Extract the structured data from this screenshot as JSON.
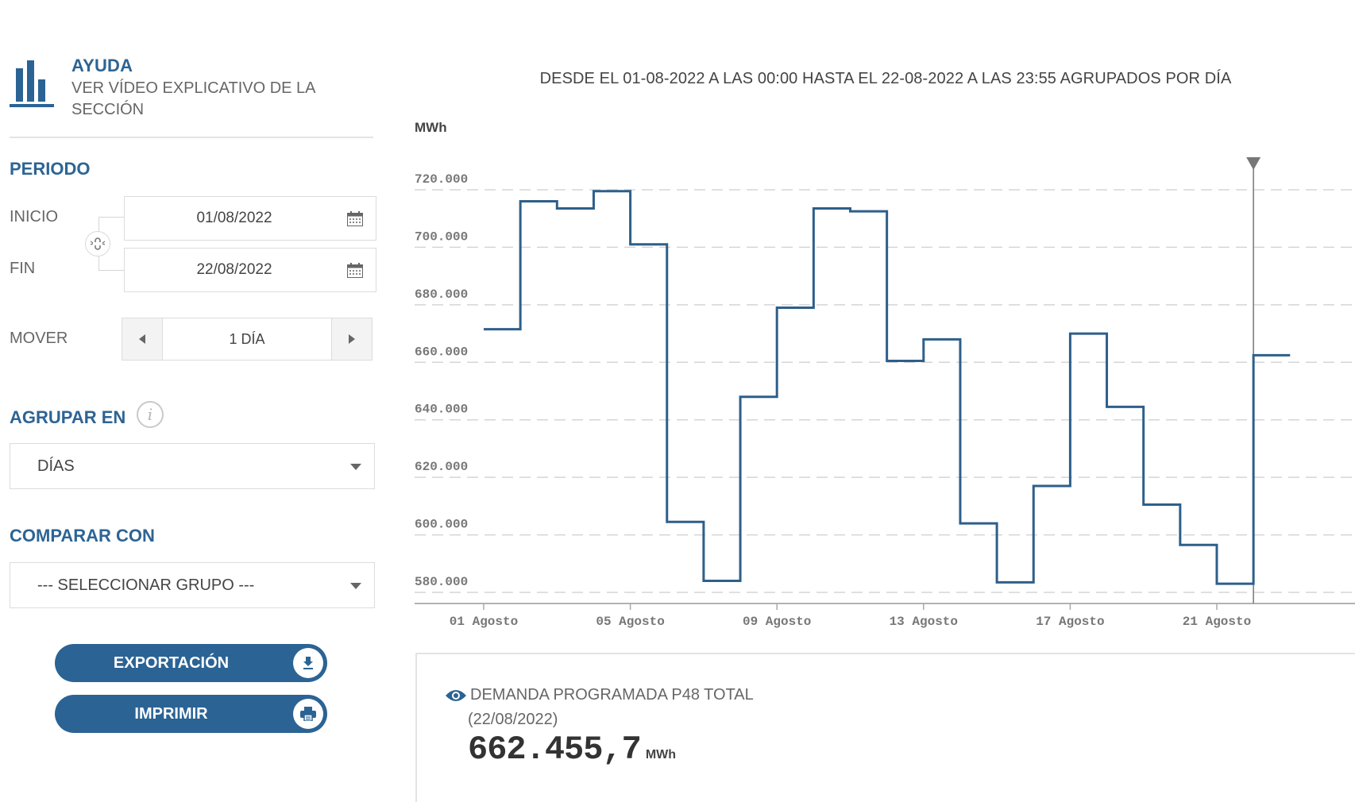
{
  "help": {
    "title": "AYUDA",
    "text": "VER VÍDEO EXPLICATIVO DE LA SECCIÓN",
    "icon": "bar-chart-icon"
  },
  "periodo": {
    "title": "PERIODO",
    "inicio_label": "INICIO",
    "inicio_value": "01/08/2022",
    "fin_label": "FIN",
    "fin_value": "22/08/2022",
    "calendar_icon": "calendar-icon",
    "link_icon": "link-broken-icon"
  },
  "mover": {
    "label": "MOVER",
    "value": "1 DÍA",
    "prev_icon": "caret-left-icon",
    "next_icon": "caret-right-icon"
  },
  "agrupar": {
    "title": "AGRUPAR EN",
    "info_icon": "i",
    "selected": "DÍAS"
  },
  "comparar": {
    "title": "COMPARAR CON",
    "selected": "--- SELECCIONAR GRUPO ---"
  },
  "buttons": {
    "export_label": "EXPORTACIÓN",
    "export_icon": "download-icon",
    "print_label": "IMPRIMIR",
    "print_icon": "printer-icon"
  },
  "header": {
    "subtitle": "DESDE EL 01-08-2022 A LAS 00:00 HASTA EL 22-08-2022 A LAS 23:55 AGRUPADOS POR DÍA"
  },
  "info": {
    "title": "DEMANDA PROGRAMADA P48 TOTAL",
    "date": "(22/08/2022)",
    "value": "662.455,7",
    "unit": "MWh",
    "icon": "eye-icon"
  },
  "colors": {
    "brand": "#2b6394",
    "line": "#2e5f8a",
    "grid": "#d5d5d5",
    "axis_text": "#777777"
  },
  "chart_data": {
    "type": "line",
    "step": true,
    "title": "DESDE EL 01-08-2022 A LAS 00:00 HASTA EL 22-08-2022 A LAS 23:55 AGRUPADOS POR DÍA",
    "xlabel": "",
    "ylabel": "MWh",
    "ylim": [
      575000,
      730000
    ],
    "yticks": [
      580000,
      600000,
      620000,
      640000,
      660000,
      680000,
      700000,
      720000
    ],
    "ytick_labels": [
      "580.000",
      "600.000",
      "620.000",
      "640.000",
      "660.000",
      "680.000",
      "700.000",
      "720.000"
    ],
    "xtick_labels": [
      "01 Agosto",
      "05 Agosto",
      "09 Agosto",
      "13 Agosto",
      "17 Agosto",
      "21 Agosto"
    ],
    "xtick_days": [
      1,
      5,
      9,
      13,
      17,
      21
    ],
    "grid": true,
    "legend": "none",
    "marker_day": 22,
    "x": [
      "01/08",
      "02/08",
      "03/08",
      "04/08",
      "05/08",
      "06/08",
      "07/08",
      "08/08",
      "09/08",
      "10/08",
      "11/08",
      "12/08",
      "13/08",
      "14/08",
      "15/08",
      "16/08",
      "17/08",
      "18/08",
      "19/08",
      "20/08",
      "21/08",
      "22/08"
    ],
    "series": [
      {
        "name": "Demanda programada P48 total",
        "values": [
          671500,
          716000,
          713500,
          719500,
          701000,
          604500,
          584000,
          648000,
          679000,
          713500,
          712500,
          660500,
          668000,
          604000,
          583500,
          617000,
          670000,
          644500,
          610500,
          596500,
          583000,
          662456
        ]
      }
    ]
  }
}
